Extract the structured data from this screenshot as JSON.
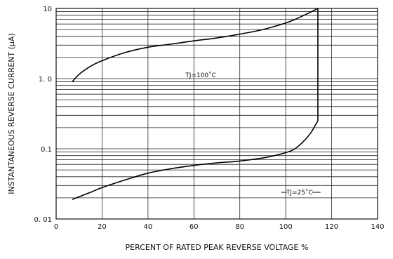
{
  "chart_data": {
    "type": "line",
    "title": "",
    "xlabel": "PERCENT OF RATED PEAK REVERSE VOLTAGE %",
    "ylabel": "INSTANTANEOUS REVERSE CURRENT  (µA)",
    "xlim": [
      0,
      140
    ],
    "ylim": [
      0.01,
      10
    ],
    "y_scale": "log",
    "x_ticks": [
      "0",
      "20",
      "40",
      "60",
      "80",
      "100",
      "120",
      "140"
    ],
    "y_ticks": [
      "0. 01",
      "0.1",
      "1. 0",
      "10"
    ],
    "grid": true,
    "series": [
      {
        "name": "TJ=100˚C",
        "x": [
          7,
          10,
          15,
          20,
          30,
          40,
          50,
          60,
          70,
          80,
          90,
          100,
          105,
          110,
          114
        ],
        "y": [
          0.9,
          1.15,
          1.5,
          1.8,
          2.35,
          2.8,
          3.1,
          3.45,
          3.8,
          4.3,
          5.0,
          6.2,
          7.2,
          8.6,
          10
        ]
      },
      {
        "name": "TJ=25˚C",
        "x": [
          7,
          15,
          20,
          30,
          40,
          50,
          60,
          70,
          80,
          90,
          95,
          100,
          104,
          108,
          111,
          113,
          114
        ],
        "y": [
          0.019,
          0.024,
          0.028,
          0.036,
          0.045,
          0.052,
          0.058,
          0.063,
          0.067,
          0.074,
          0.08,
          0.088,
          0.1,
          0.13,
          0.17,
          0.22,
          0.25
        ]
      }
    ],
    "vertical_segment": {
      "x": 114,
      "y_from": 0.25,
      "y_to": 10
    },
    "annotations": [
      {
        "text": "TJ=100˚C",
        "x": 63,
        "y": 1.12
      },
      {
        "text": "TJ=25˚C",
        "x": 106,
        "y": 0.024
      }
    ]
  }
}
